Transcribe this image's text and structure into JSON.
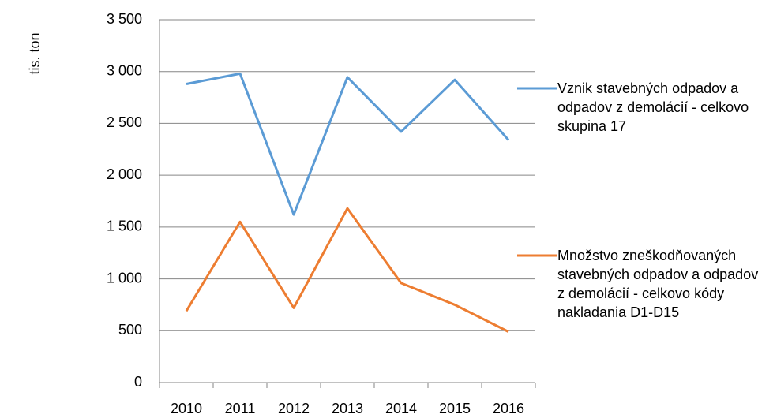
{
  "chart_data": {
    "type": "line",
    "y_label": "tis. ton",
    "categories": [
      "2010",
      "2011",
      "2012",
      "2013",
      "2014",
      "2015",
      "2016"
    ],
    "series": [
      {
        "name": "Vznik stavebných odpadov a odpadov z demolácií - celkovo skupina 17",
        "color": "#5b9bd5",
        "values": [
          2880,
          2980,
          1620,
          2945,
          2420,
          2920,
          2340
        ]
      },
      {
        "name": "Množstvo zneškodňovaných stavebných odpadov a odpadov z demolácií - celkovo kódy nakladania D1-D15",
        "color": "#ed7d31",
        "values": [
          690,
          1550,
          720,
          1680,
          960,
          750,
          490
        ]
      }
    ],
    "ylim": [
      0,
      3500
    ],
    "yticks": [
      0,
      500,
      {
        "value": 1000,
        "label": "1 000"
      },
      {
        "value": 1500,
        "label": "1 500"
      },
      {
        "value": 2000,
        "label": "2 000"
      },
      {
        "value": 2500,
        "label": "2 500"
      },
      {
        "value": 3000,
        "label": "3 000"
      },
      {
        "value": 3500,
        "label": "3 500"
      }
    ],
    "grid": true
  }
}
